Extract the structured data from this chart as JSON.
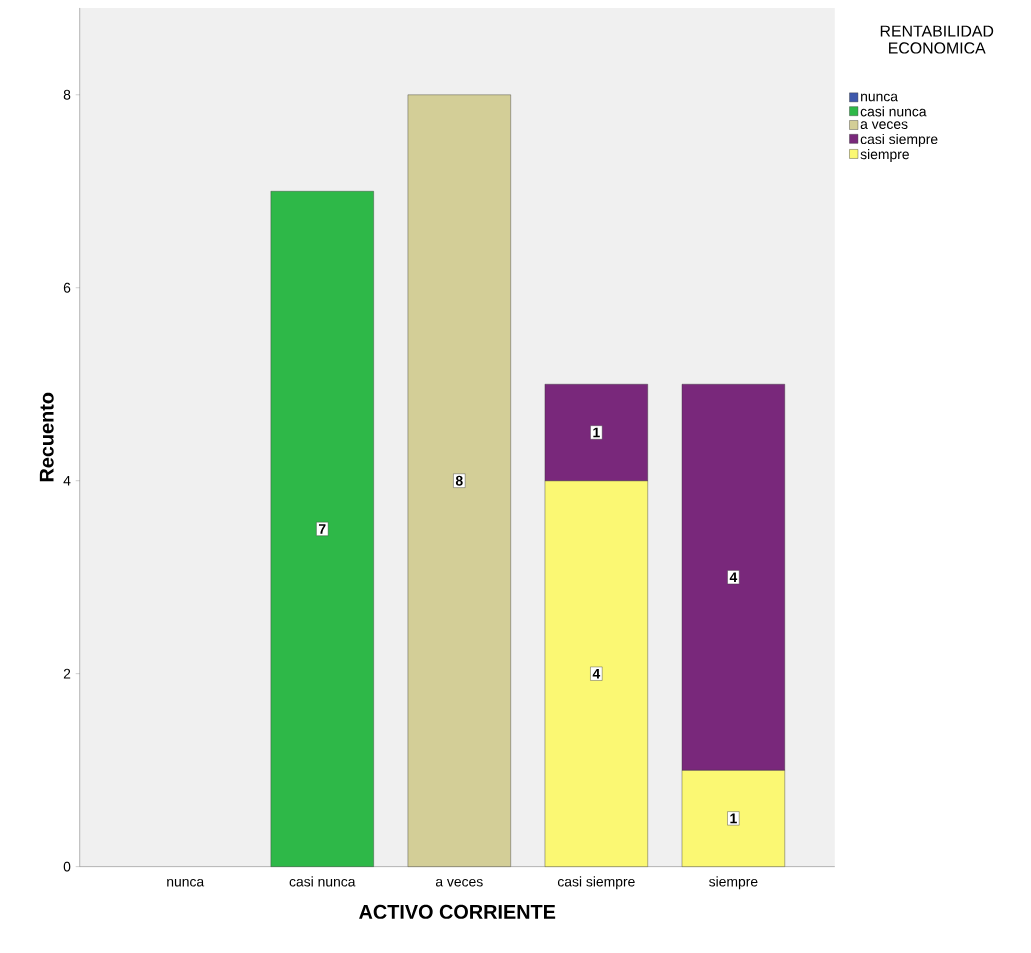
{
  "chart_data": {
    "type": "bar",
    "stacked": true,
    "xlabel": "ACTIVO CORRIENTE",
    "ylabel": "Recuento",
    "categories": [
      "nunca",
      "casi nunca",
      "a veces",
      "casi siempre",
      "siempre"
    ],
    "series": [
      {
        "name": "siempre",
        "color": "#fbf873",
        "values": [
          null,
          null,
          null,
          4,
          1
        ]
      },
      {
        "name": "casi siempre",
        "color": "#79287b",
        "values": [
          null,
          null,
          null,
          1,
          4
        ]
      },
      {
        "name": "a veces",
        "color": "#d3ce97",
        "values": [
          null,
          null,
          8,
          null,
          null
        ]
      },
      {
        "name": "casi nunca",
        "color": "#2eb848",
        "values": [
          null,
          7,
          null,
          null,
          null
        ]
      },
      {
        "name": "nunca",
        "color": "#3e58ac",
        "values": [
          null,
          null,
          null,
          null,
          null
        ]
      }
    ],
    "legend_title": "RENTABILIDAD ECONOMICA",
    "legend": "top right",
    "ylim": [
      0,
      8.9
    ],
    "yticks": [
      0,
      2,
      4,
      6,
      8
    ],
    "data_labels": true,
    "grid": false
  }
}
